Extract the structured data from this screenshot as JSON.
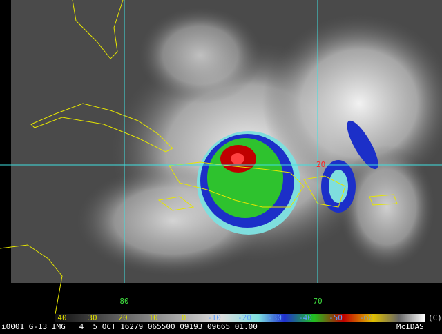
{
  "grid_labels": {
    "latitude": "20",
    "longitude": [
      "80",
      "70"
    ]
  },
  "color_scale": {
    "labels": [
      "40",
      "30",
      "20",
      "10",
      "0",
      "-10",
      "-20",
      "-30",
      "-40",
      "-50",
      "-60"
    ],
    "copyright": "(C)"
  },
  "footer": {
    "info": "i0001 G-13 IMG   4  5 OCT 16279 065500 09193 09665 01.00",
    "brand": "McIDAS"
  }
}
